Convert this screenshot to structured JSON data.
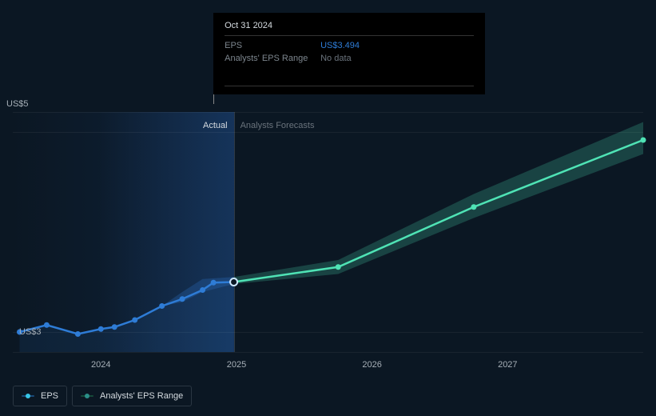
{
  "chart": {
    "type": "line",
    "background_color": "#0b1723",
    "grid_color": "rgba(255,255,255,0.06)",
    "y_axis": {
      "min": 2.8,
      "max": 5.2,
      "ticks": [
        {
          "value": 3,
          "label": "US$3"
        },
        {
          "value": 5,
          "label": "US$5"
        }
      ],
      "label_color": "#a7b0b8",
      "label_fontsize": 11
    },
    "x_axis": {
      "min": 2023.35,
      "max": 2028.0,
      "ticks": [
        {
          "value": 2024,
          "label": "2024"
        },
        {
          "value": 2025,
          "label": "2025"
        },
        {
          "value": 2026,
          "label": "2026"
        },
        {
          "value": 2027,
          "label": "2027"
        }
      ],
      "label_color": "#a7b0b8",
      "label_fontsize": 11
    },
    "divider": {
      "x": 2024.98,
      "left_label": "Actual",
      "left_color": "#d5dbe0",
      "right_label": "Analysts Forecasts",
      "right_color": "#6a737c",
      "line_color": "rgba(255,255,255,0.15)"
    },
    "actual_region": {
      "from_x": 2023.35,
      "to_x": 2024.98,
      "gradient_start": "rgba(15,30,48,0.0)",
      "gradient_end": "rgba(20,50,90,0.42)"
    },
    "highlight_region": {
      "from_x": 2023.98,
      "to_x": 2024.98,
      "gradient_start": "rgba(34,84,150,0.0)",
      "gradient_end": "rgba(34,84,150,0.35)"
    },
    "series": [
      {
        "id": "eps",
        "label": "EPS",
        "color_actual": "#2e7cd6",
        "color_forecast": "#4fe3b5",
        "line_width": 2.5,
        "marker_radius": 3.5,
        "data_actual": [
          {
            "x": 2023.4,
            "y": 3.0
          },
          {
            "x": 2023.6,
            "y": 3.07
          },
          {
            "x": 2023.83,
            "y": 2.98
          },
          {
            "x": 2024.0,
            "y": 3.03
          },
          {
            "x": 2024.1,
            "y": 3.05
          },
          {
            "x": 2024.25,
            "y": 3.12
          },
          {
            "x": 2024.45,
            "y": 3.26
          },
          {
            "x": 2024.6,
            "y": 3.33
          },
          {
            "x": 2024.75,
            "y": 3.42
          },
          {
            "x": 2024.83,
            "y": 3.494
          }
        ],
        "marker_open": {
          "x": 2024.98,
          "y": 3.5
        },
        "data_forecast": [
          {
            "x": 2024.98,
            "y": 3.5
          },
          {
            "x": 2025.75,
            "y": 3.65
          },
          {
            "x": 2026.75,
            "y": 4.25
          },
          {
            "x": 2028.0,
            "y": 4.92
          }
        ]
      },
      {
        "id": "eps_range",
        "label": "Analysts' EPS Range",
        "fill_actual": "rgba(46,124,214,0.25)",
        "fill_forecast": "rgba(79,227,181,0.22)",
        "upper_actual": [
          {
            "x": 2024.45,
            "y": 3.26
          },
          {
            "x": 2024.6,
            "y": 3.4
          },
          {
            "x": 2024.75,
            "y": 3.53
          },
          {
            "x": 2024.98,
            "y": 3.55
          }
        ],
        "lower_actual": [
          {
            "x": 2024.98,
            "y": 3.48
          },
          {
            "x": 2024.75,
            "y": 3.4
          },
          {
            "x": 2024.6,
            "y": 3.3
          },
          {
            "x": 2024.45,
            "y": 3.26
          }
        ],
        "upper_forecast": [
          {
            "x": 2024.98,
            "y": 3.55
          },
          {
            "x": 2025.75,
            "y": 3.72
          },
          {
            "x": 2026.75,
            "y": 4.38
          },
          {
            "x": 2028.0,
            "y": 5.1
          }
        ],
        "lower_forecast": [
          {
            "x": 2028.0,
            "y": 4.78
          },
          {
            "x": 2026.75,
            "y": 4.14
          },
          {
            "x": 2025.75,
            "y": 3.58
          },
          {
            "x": 2024.98,
            "y": 3.48
          }
        ]
      }
    ],
    "tooltip": {
      "x": 2024.83,
      "date": "Oct 31 2024",
      "rows": [
        {
          "key": "EPS",
          "value": "US$3.494",
          "color": "#2e7cd6"
        },
        {
          "key": "Analysts' EPS Range",
          "value": "No data",
          "color": "#6a737c"
        }
      ],
      "background": "#000000",
      "key_color": "#7c858d",
      "date_color": "#d5dbe0"
    },
    "legend": [
      {
        "id": "eps",
        "label": "EPS",
        "line_color": "#1b4a7a",
        "dot_color": "#37c6e6"
      },
      {
        "id": "eps_range",
        "label": "Analysts' EPS Range",
        "line_color": "#164a3a",
        "dot_color": "#2b8f88"
      }
    ]
  }
}
